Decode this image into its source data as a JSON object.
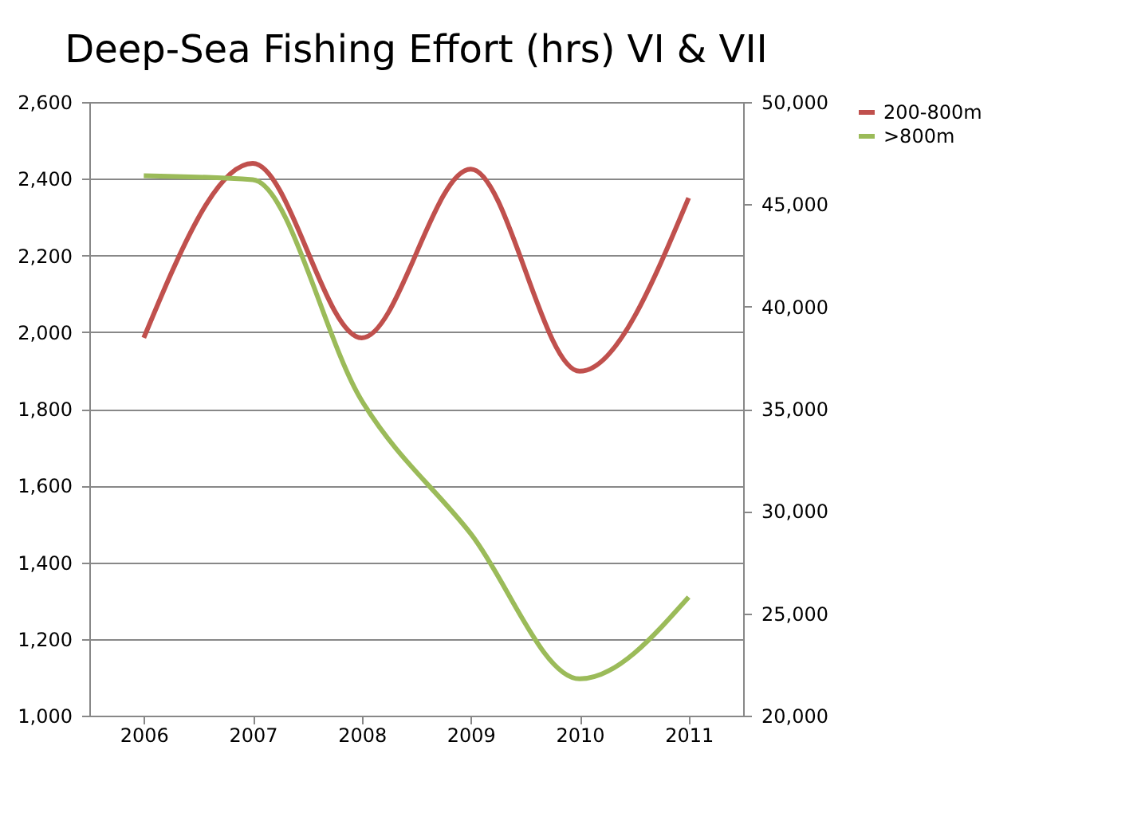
{
  "chart_data": {
    "type": "line",
    "title": "Deep-Sea Fishing Effort (hrs) VI & VII",
    "categories": [
      "2006",
      "2007",
      "2008",
      "2009",
      "2010",
      "2011"
    ],
    "series": [
      {
        "name": "200-800m",
        "color": "#c0504d",
        "values": [
          1985,
          2440,
          1985,
          2425,
          1898,
          2350
        ]
      },
      {
        "name": ">800m",
        "color": "#9bbb59",
        "axis": "y2",
        "values": [
          46400,
          46200,
          35400,
          28900,
          21800,
          25800
        ]
      }
    ],
    "ylim": [
      1000,
      2600
    ],
    "yticks": [
      {
        "value": 1000,
        "label": "1,000"
      },
      {
        "value": 1200,
        "label": "1,200"
      },
      {
        "value": 1400,
        "label": "1,400"
      },
      {
        "value": 1600,
        "label": "1,600"
      },
      {
        "value": 1800,
        "label": "1,800"
      },
      {
        "value": 2000,
        "label": "2,000"
      },
      {
        "value": 2200,
        "label": "2,200"
      },
      {
        "value": 2400,
        "label": "2,400"
      },
      {
        "value": 2600,
        "label": "2,600"
      }
    ],
    "y2lim": [
      20000,
      50000
    ],
    "y2ticks": [
      {
        "value": 20000,
        "label": "20,000"
      },
      {
        "value": 25000,
        "label": "25,000"
      },
      {
        "value": 30000,
        "label": "30,000"
      },
      {
        "value": 35000,
        "label": "35,000"
      },
      {
        "value": 40000,
        "label": "40,000"
      },
      {
        "value": 45000,
        "label": "45,000"
      },
      {
        "value": 50000,
        "label": "50,000"
      }
    ],
    "grid": "y",
    "legend": "right",
    "marker": "none",
    "line_style": "solid"
  }
}
